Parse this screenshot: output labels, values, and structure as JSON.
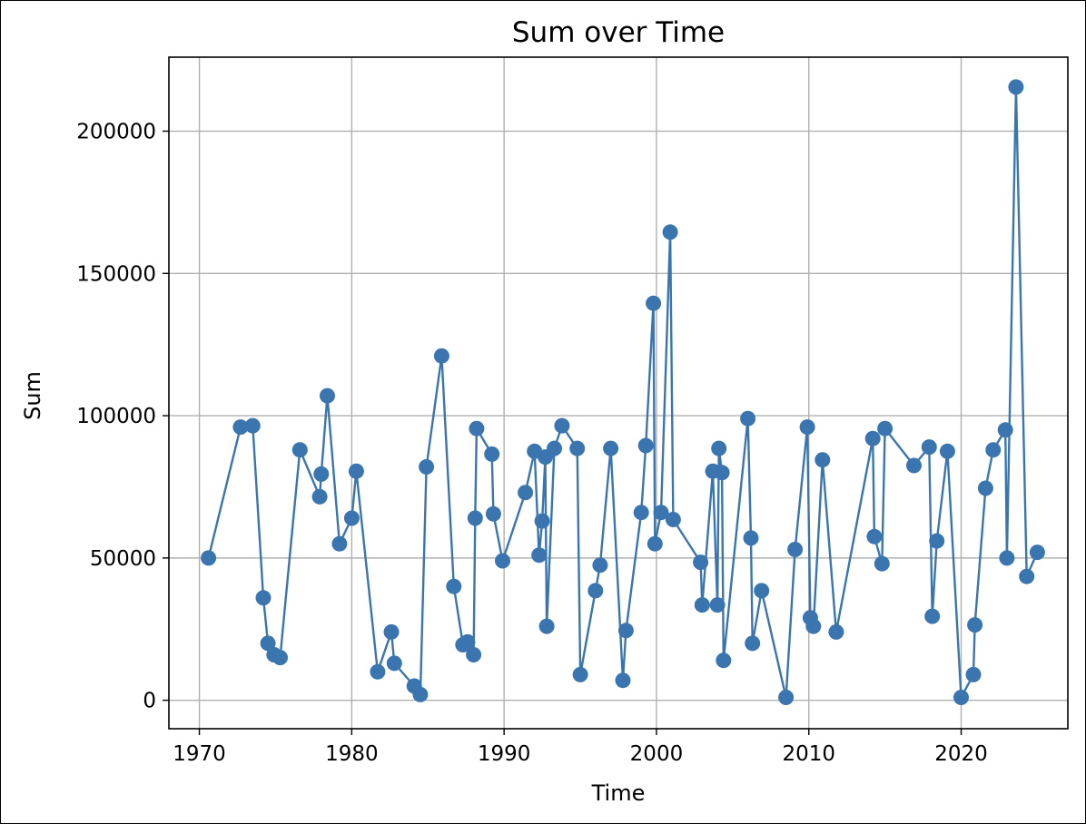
{
  "chart_data": {
    "type": "line",
    "title": "Sum over Time",
    "xlabel": "Time",
    "ylabel": "Sum",
    "xlim": [
      1968,
      2027
    ],
    "ylim": [
      -10000,
      226000
    ],
    "x_ticks": [
      1970,
      1980,
      1990,
      2000,
      2010,
      2020
    ],
    "y_ticks": [
      0,
      50000,
      100000,
      150000,
      200000
    ],
    "grid": true,
    "legend": "none",
    "colors": {
      "series": "#3a75b0",
      "grid": "#b0b0b0",
      "axes": "#000000"
    },
    "series": [
      {
        "marker": "circle",
        "points": [
          [
            1970.6,
            50000
          ],
          [
            1972.7,
            96000
          ],
          [
            1973.5,
            96500
          ],
          [
            1974.2,
            36000
          ],
          [
            1974.5,
            20000
          ],
          [
            1974.9,
            16000
          ],
          [
            1975.3,
            15000
          ],
          [
            1976.6,
            88000
          ],
          [
            1977.9,
            71500
          ],
          [
            1978.0,
            79500
          ],
          [
            1978.4,
            107000
          ],
          [
            1979.2,
            55000
          ],
          [
            1980.0,
            64000
          ],
          [
            1980.3,
            80500
          ],
          [
            1981.7,
            10000
          ],
          [
            1982.6,
            24000
          ],
          [
            1982.8,
            13000
          ],
          [
            1984.1,
            5000
          ],
          [
            1984.5,
            2000
          ],
          [
            1984.9,
            82000
          ],
          [
            1985.9,
            121000
          ],
          [
            1986.7,
            40000
          ],
          [
            1987.3,
            19500
          ],
          [
            1987.6,
            20500
          ],
          [
            1988.0,
            16000
          ],
          [
            1988.1,
            64000
          ],
          [
            1988.2,
            95500
          ],
          [
            1989.2,
            86500
          ],
          [
            1989.3,
            65500
          ],
          [
            1989.9,
            49000
          ],
          [
            1991.4,
            73000
          ],
          [
            1992.0,
            87500
          ],
          [
            1992.3,
            51000
          ],
          [
            1992.5,
            63000
          ],
          [
            1992.7,
            85500
          ],
          [
            1992.8,
            26000
          ],
          [
            1993.3,
            88500
          ],
          [
            1993.8,
            96500
          ],
          [
            1994.8,
            88500
          ],
          [
            1995.0,
            9000
          ],
          [
            1996.0,
            38500
          ],
          [
            1996.3,
            47500
          ],
          [
            1997.0,
            88500
          ],
          [
            1997.8,
            7000
          ],
          [
            1998.0,
            24500
          ],
          [
            1999.0,
            66000
          ],
          [
            1999.3,
            89500
          ],
          [
            1999.8,
            139500
          ],
          [
            1999.9,
            55000
          ],
          [
            2000.3,
            66000
          ],
          [
            2000.9,
            164500
          ],
          [
            2001.1,
            63500
          ],
          [
            2002.9,
            48500
          ],
          [
            2003.0,
            33500
          ],
          [
            2003.7,
            80500
          ],
          [
            2004.0,
            33500
          ],
          [
            2004.1,
            88500
          ],
          [
            2004.3,
            80000
          ],
          [
            2004.4,
            14000
          ],
          [
            2006.0,
            99000
          ],
          [
            2006.2,
            57000
          ],
          [
            2006.3,
            20000
          ],
          [
            2006.9,
            38500
          ],
          [
            2008.5,
            1000
          ],
          [
            2009.1,
            53000
          ],
          [
            2009.9,
            96000
          ],
          [
            2010.1,
            29000
          ],
          [
            2010.3,
            26000
          ],
          [
            2010.9,
            84500
          ],
          [
            2011.8,
            24000
          ],
          [
            2014.2,
            92000
          ],
          [
            2014.3,
            57500
          ],
          [
            2014.8,
            48000
          ],
          [
            2015.0,
            95500
          ],
          [
            2016.9,
            82500
          ],
          [
            2017.9,
            89000
          ],
          [
            2018.1,
            29500
          ],
          [
            2018.4,
            56000
          ],
          [
            2019.1,
            87500
          ],
          [
            2020.0,
            1000
          ],
          [
            2020.8,
            9000
          ],
          [
            2020.9,
            26500
          ],
          [
            2021.6,
            74500
          ],
          [
            2022.1,
            88000
          ],
          [
            2022.9,
            95000
          ],
          [
            2023.0,
            50000
          ],
          [
            2023.6,
            215500
          ],
          [
            2024.3,
            43500
          ],
          [
            2025.0,
            52000
          ]
        ]
      }
    ]
  }
}
